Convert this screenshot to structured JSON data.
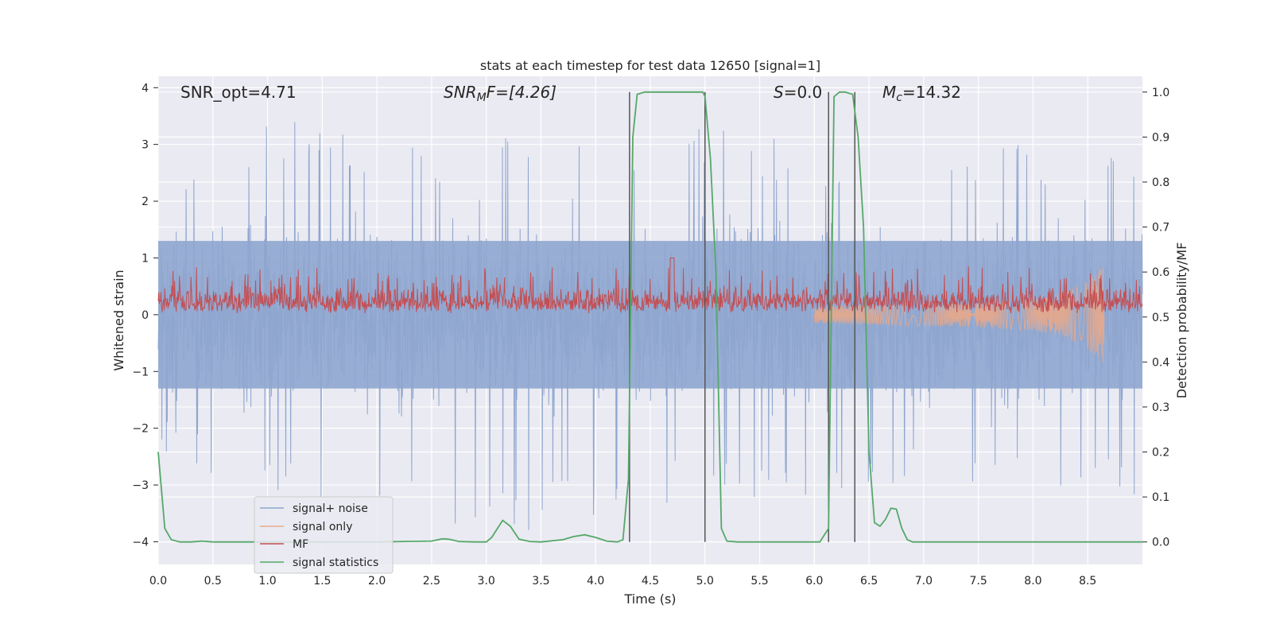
{
  "chart_data": {
    "type": "line",
    "title": "stats at each timestep for test data 12650 [signal=1]",
    "xlabel": "Time (s)",
    "ylabel": "Whitened strain",
    "y2label": "Detection probability/MF",
    "xlim": [
      0.0,
      9.0
    ],
    "ylim": [
      -4.4,
      4.2
    ],
    "y2lim": [
      -0.05,
      1.035
    ],
    "xticks": [
      "0.0",
      "0.5",
      "1.0",
      "1.5",
      "2.0",
      "2.5",
      "3.0",
      "3.5",
      "4.0",
      "4.5",
      "5.0",
      "5.5",
      "6.0",
      "6.5",
      "7.0",
      "7.5",
      "8.0",
      "8.5"
    ],
    "yticks": [
      "4",
      "3",
      "2",
      "1",
      "0",
      "−1",
      "−2",
      "−3",
      "−4"
    ],
    "y2ticks": [
      "1.0",
      "0.9",
      "0.8",
      "0.7",
      "0.6",
      "0.5",
      "0.4",
      "0.3",
      "0.2",
      "0.1",
      "0.0"
    ],
    "grid": true,
    "legend_position": "lower-left",
    "annotations": {
      "snr_opt": "SNR_opt=4.71",
      "snr_mf_sym": "SNR",
      "snr_mf_sub": "M",
      "snr_mf_rest": "F=[4.26]",
      "s_sym": "S",
      "s_rest": "=0.0",
      "mc_sym": "M",
      "mc_sub": "c",
      "mc_rest": "=14.32"
    },
    "vertical_lines_x": [
      4.31,
      5.0,
      6.13,
      6.37
    ],
    "series": [
      {
        "name": "signal+ noise",
        "color": "#8fa6cf",
        "axis": "left",
        "kind": "noise",
        "envelope_t": [
          0.0,
          1.0,
          2.0,
          3.0,
          4.0,
          5.0,
          6.0,
          7.0,
          8.0,
          9.0
        ],
        "envelope_hi": [
          2.4,
          3.6,
          3.0,
          3.2,
          3.0,
          3.4,
          3.0,
          3.2,
          3.1,
          2.7
        ],
        "envelope_lo": [
          -2.4,
          -3.3,
          -3.3,
          -3.9,
          -3.7,
          -3.3,
          -3.2,
          -3.0,
          -3.0,
          -3.2
        ]
      },
      {
        "name": "signal only",
        "color": "#e8a98a",
        "axis": "left",
        "kind": "chirp",
        "t": [
          6.0,
          6.5,
          7.0,
          7.5,
          8.0,
          8.3,
          8.5,
          8.65
        ],
        "amplitude": [
          0.15,
          0.18,
          0.2,
          0.22,
          0.28,
          0.4,
          0.6,
          0.9
        ]
      },
      {
        "name": "MF",
        "color": "#c44e52",
        "axis": "left",
        "kind": "band",
        "base": 0.02,
        "typical_peak": 0.55,
        "max_peak": 1.0
      },
      {
        "name": "signal statistics",
        "color": "#55a868",
        "axis": "right",
        "kind": "line",
        "x": [
          0.0,
          0.06,
          0.12,
          0.2,
          0.3,
          0.4,
          0.5,
          0.6,
          0.8,
          1.0,
          1.5,
          2.0,
          2.5,
          2.6,
          2.66,
          2.75,
          2.9,
          3.0,
          3.05,
          3.15,
          3.22,
          3.3,
          3.4,
          3.5,
          3.7,
          3.8,
          3.9,
          4.0,
          4.1,
          4.2,
          4.25,
          4.3,
          4.34,
          4.38,
          4.45,
          4.6,
          4.8,
          4.9,
          4.98,
          5.0,
          5.05,
          5.1,
          5.15,
          5.2,
          5.3,
          5.5,
          5.9,
          6.05,
          6.13,
          6.18,
          6.23,
          6.28,
          6.35,
          6.4,
          6.45,
          6.5,
          6.55,
          6.6,
          6.65,
          6.7,
          6.75,
          6.8,
          6.85,
          6.9,
          6.95,
          7.0,
          7.5,
          8.0,
          8.5,
          9.0
        ],
        "y": [
          0.2,
          0.03,
          0.005,
          0.0,
          0.0,
          0.002,
          0.0,
          0.0,
          0.0,
          0.0,
          0.0,
          0.0,
          0.002,
          0.007,
          0.006,
          0.001,
          0.0,
          0.0,
          0.01,
          0.048,
          0.035,
          0.006,
          0.001,
          0.0,
          0.005,
          0.012,
          0.016,
          0.01,
          0.002,
          0.0,
          0.005,
          0.14,
          0.9,
          0.995,
          1.0,
          1.0,
          1.0,
          1.0,
          1.0,
          0.99,
          0.85,
          0.6,
          0.03,
          0.002,
          0.0,
          0.0,
          0.0,
          0.0,
          0.03,
          0.99,
          1.0,
          1.0,
          0.995,
          0.9,
          0.7,
          0.2,
          0.043,
          0.035,
          0.05,
          0.075,
          0.073,
          0.03,
          0.005,
          0.0,
          0.0,
          0.0,
          0.0,
          0.0,
          0.0,
          0.0
        ]
      }
    ]
  }
}
